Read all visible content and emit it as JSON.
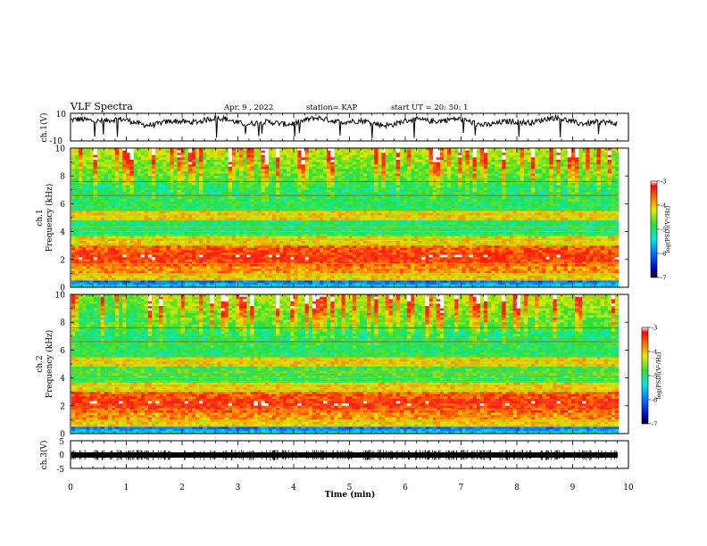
{
  "header": {
    "title": "VLF Spectra",
    "date": "Apr. 9  , 2022",
    "station": "station= KAP",
    "start": "start  UT  =   20: 50: 1"
  },
  "chart_data": [
    {
      "type": "line",
      "ylabel": "ch.1(V)",
      "ylim": [
        -10,
        10
      ],
      "y_ticks": [
        "10",
        "-10"
      ],
      "xlim": [
        0,
        10
      ],
      "series_note": "noisy waveform around 5 V"
    },
    {
      "type": "heatmap",
      "ylabel_top": "ch.1",
      "ylabel": "Frequency (kHz)",
      "ylim": [
        0,
        10
      ],
      "y_ticks": [
        "0",
        "2",
        "4",
        "6",
        "8",
        "10"
      ],
      "xlim": [
        0,
        10
      ],
      "colorbar": {
        "label": "log(PSD)(V²/Hz)",
        "range": [
          -7,
          -3
        ],
        "ticks": [
          "-3",
          "-4",
          "-5",
          "-6",
          "-7"
        ]
      }
    },
    {
      "type": "heatmap",
      "ylabel_top": "ch.2",
      "ylabel": "Frequency (kHz)",
      "ylim": [
        0,
        10
      ],
      "y_ticks": [
        "0",
        "2",
        "4",
        "6",
        "8",
        "10"
      ],
      "xlim": [
        0,
        10
      ],
      "colorbar": {
        "label": "log(PSD)(V²/Hz)",
        "range": [
          -7,
          -3
        ],
        "ticks": [
          "-3",
          "-4",
          "-5",
          "-6",
          "-7"
        ]
      }
    },
    {
      "type": "line",
      "ylabel": "ch.3(V)",
      "ylim": [
        -5,
        5
      ],
      "y_ticks": [
        "5",
        "0",
        "-5"
      ],
      "xlim": [
        0,
        10
      ],
      "series_note": "dense band near -0.5 V"
    }
  ],
  "xaxis": {
    "label": "Time  (min)",
    "ticks": [
      "0",
      "1",
      "2",
      "3",
      "4",
      "5",
      "6",
      "7",
      "8",
      "9",
      "10"
    ]
  },
  "colors": {
    "axis": "#000000",
    "waveform": "#000000"
  }
}
